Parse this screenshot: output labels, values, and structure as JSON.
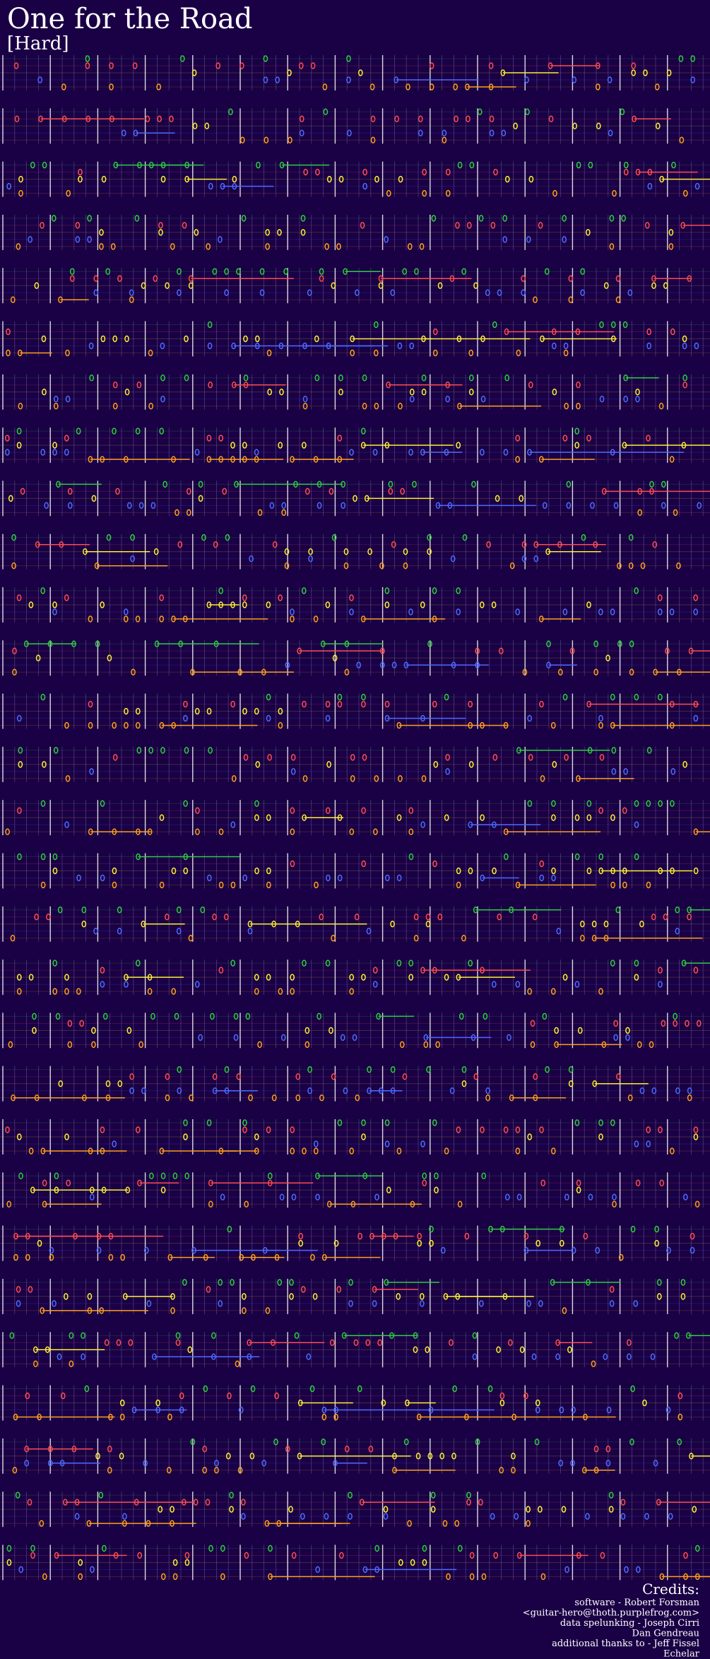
{
  "header": {
    "title": "One for the Road",
    "difficulty": "[Hard]"
  },
  "credits": {
    "heading": "Credits:",
    "lines": [
      "software - Robert Forsman",
      "<guitar-hero@thoth.purplefrog.com>",
      "data spelunking - Joseph Cirri",
      "Dan Gendreau",
      "additional thanks to - Jeff Fissel",
      "Echelar"
    ]
  }
}
